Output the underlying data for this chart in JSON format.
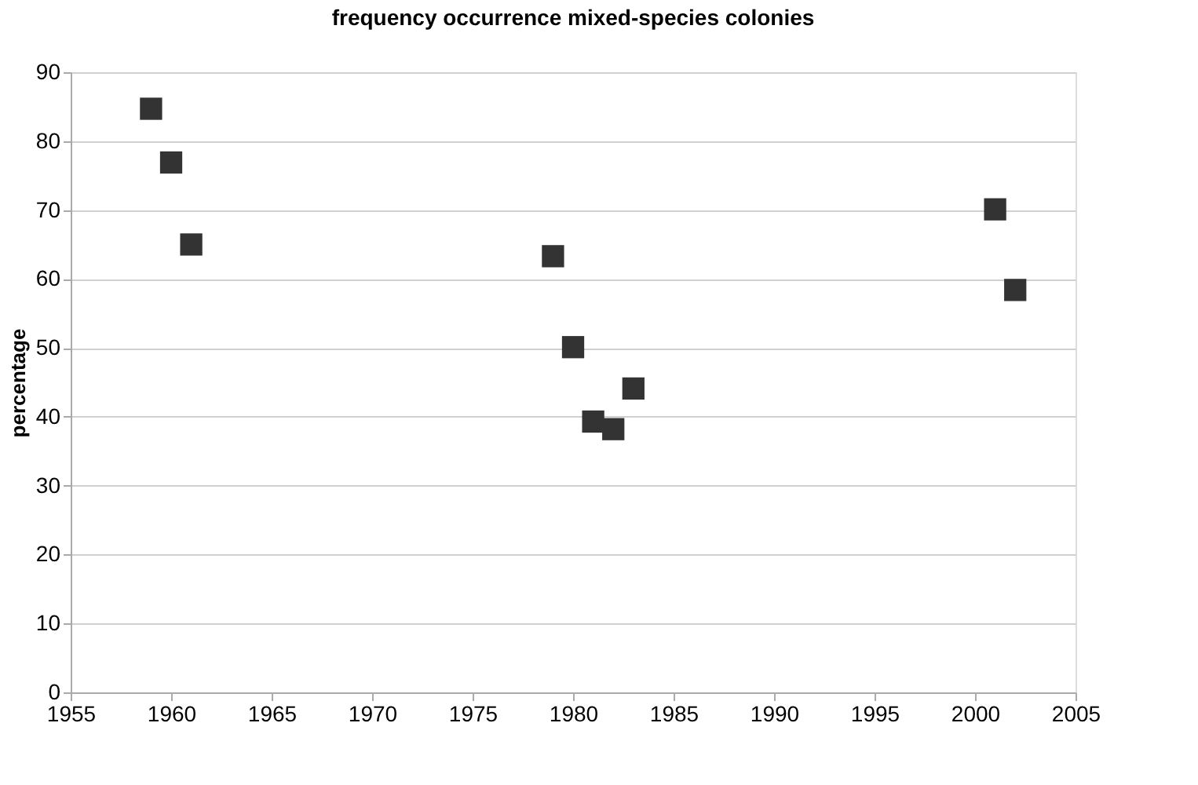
{
  "chart_data": {
    "type": "scatter",
    "title": "frequency occurrence mixed-species colonies",
    "ylabel": "percentage",
    "x": [
      1959,
      1960,
      1961,
      1979,
      1980,
      1981,
      1982,
      1983,
      2001,
      2002
    ],
    "series": [
      {
        "color": "#333333",
        "values": [
          84.7,
          76.9,
          65.0,
          63.3,
          50.1,
          39.3,
          38.2,
          44.1,
          70.1,
          58.4
        ]
      }
    ],
    "xlim": [
      1955,
      2005
    ],
    "xticks": [
      1955,
      1960,
      1965,
      1970,
      1975,
      1980,
      1985,
      1990,
      1995,
      2000,
      2005
    ],
    "ylim": [
      0,
      90
    ],
    "yticks": [
      0,
      10,
      20,
      30,
      40,
      50,
      60,
      70,
      80,
      90
    ],
    "grid": "y",
    "marker": "square"
  }
}
